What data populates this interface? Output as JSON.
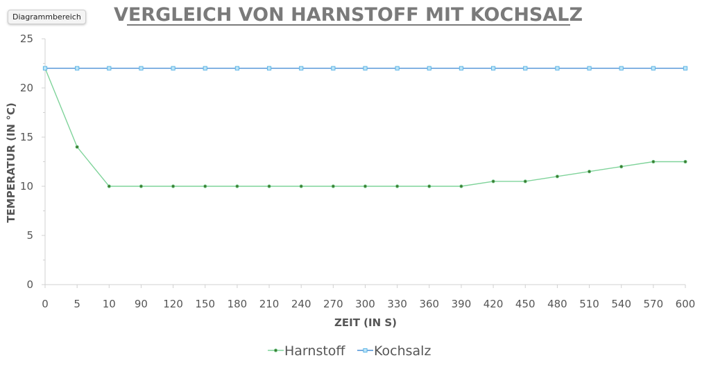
{
  "badge": {
    "label": "Diagrammbereich"
  },
  "chart_data": {
    "type": "line",
    "title": "VERGLEICH VON HARNSTOFF MIT KOCHSALZ",
    "xlabel": "ZEIT (IN S)",
    "ylabel": "TEMPERATUR (IN °C)",
    "categories": [
      "0",
      "5",
      "10",
      "90",
      "120",
      "150",
      "180",
      "210",
      "240",
      "270",
      "300",
      "330",
      "360",
      "390",
      "420",
      "450",
      "480",
      "510",
      "540",
      "570",
      "600"
    ],
    "ylim": [
      0,
      25
    ],
    "yticks": [
      "0",
      "5",
      "10",
      "15",
      "20",
      "25"
    ],
    "grid": false,
    "legend_position": "bottom",
    "series": [
      {
        "name": "Harnstoff",
        "color": "#7fd39a",
        "marker": "circle",
        "marker_color": "#3f7a2f",
        "values": [
          22,
          14,
          10,
          10,
          10,
          10,
          10,
          10,
          10,
          10,
          10,
          10,
          10,
          10,
          10.5,
          10.5,
          11,
          11.5,
          12,
          12.5,
          12.5
        ]
      },
      {
        "name": "Kochsalz",
        "color": "#4a8fd6",
        "marker": "square",
        "marker_color": "#5ab4e6",
        "values": [
          22,
          22,
          22,
          22,
          22,
          22,
          22,
          22,
          22,
          22,
          22,
          22,
          22,
          22,
          22,
          22,
          22,
          22,
          22,
          22,
          22
        ]
      }
    ]
  }
}
